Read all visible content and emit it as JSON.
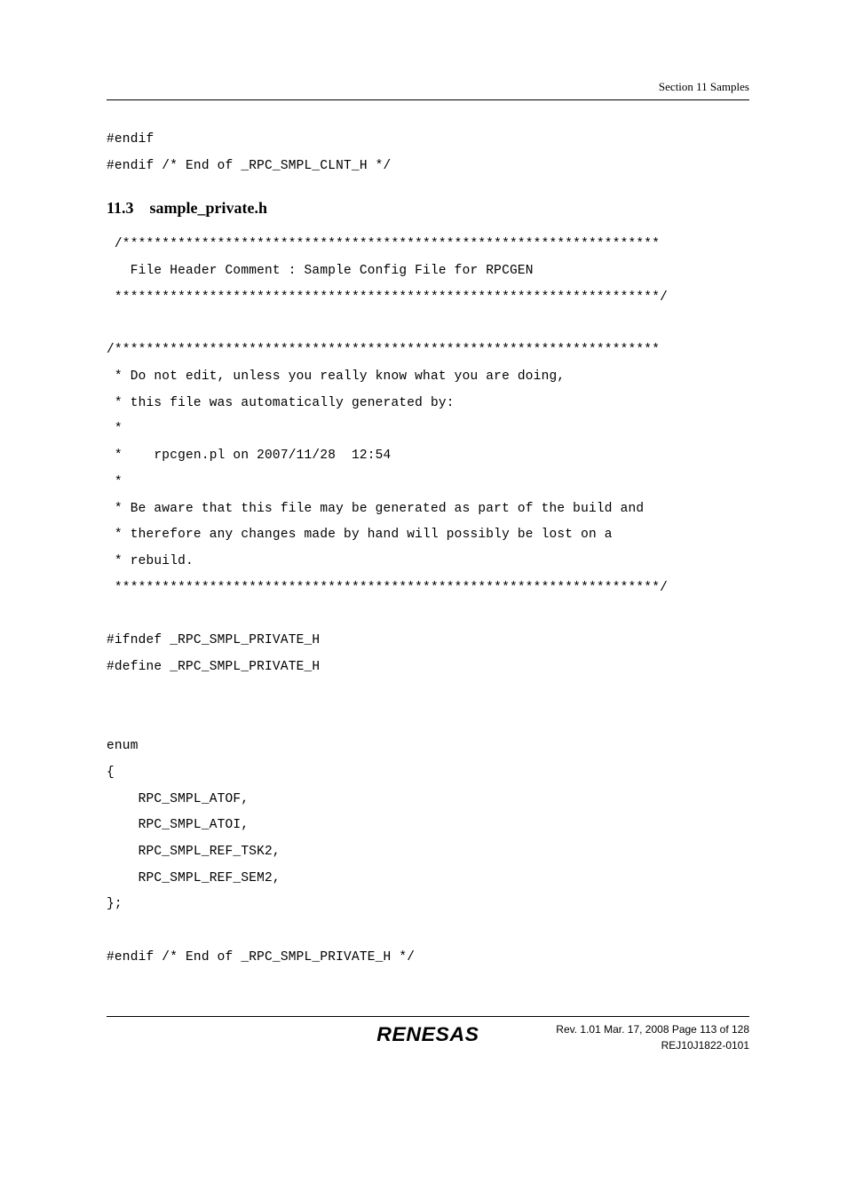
{
  "header": {
    "section_label": "Section 11   Samples"
  },
  "code_top": "#endif\n#endif /* End of _RPC_SMPL_CLNT_H */",
  "heading": {
    "number": "11.3",
    "title": "sample_private.h"
  },
  "code_main": " /********************************************************************\n   File Header Comment : Sample Config File for RPCGEN\n *********************************************************************/\n\n/*********************************************************************\n * Do not edit, unless you really know what you are doing,\n * this file was automatically generated by:\n *\n *    rpcgen.pl on 2007/11/28  12:54\n *\n * Be aware that this file may be generated as part of the build and\n * therefore any changes made by hand will possibly be lost on a\n * rebuild.\n *********************************************************************/\n\n#ifndef _RPC_SMPL_PRIVATE_H\n#define _RPC_SMPL_PRIVATE_H\n\n\nenum\n{\n    RPC_SMPL_ATOF,\n    RPC_SMPL_ATOI,\n    RPC_SMPL_REF_TSK2,\n    RPC_SMPL_REF_SEM2,\n};\n\n#endif /* End of _RPC_SMPL_PRIVATE_H */",
  "footer": {
    "logo_text": "RENESAS",
    "line1": "Rev. 1.01  Mar. 17, 2008  Page 113 of 128",
    "line2": "REJ10J1822-0101"
  }
}
